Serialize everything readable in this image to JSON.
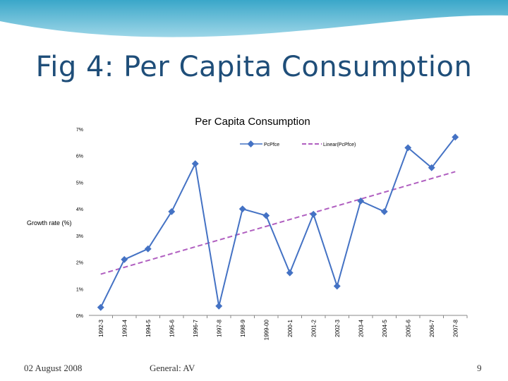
{
  "slide": {
    "title": "Fig 4: Per Capita Consumption",
    "footer_date": "02 August 2008",
    "footer_center": "General: AV",
    "page_number": "9"
  },
  "colors": {
    "series": "#4472c4",
    "trend": "#b05fc0",
    "title": "#1f4e79"
  },
  "chart_data": {
    "type": "line",
    "title": "Per Capita Consumption",
    "ylabel": "Growth rate (%)",
    "xlabel": "",
    "categories": [
      "1992-3",
      "1993-4",
      "1994-5",
      "1995-6",
      "1996-7",
      "1997-8",
      "1998-9",
      "1999-00",
      "2000-1",
      "2001-2",
      "2002-3",
      "2003-4",
      "2004-5",
      "2005-6",
      "2006-7",
      "2007-8"
    ],
    "series": [
      {
        "name": "PcPfce",
        "values": [
          0.3,
          2.1,
          2.5,
          3.9,
          5.7,
          0.35,
          4.0,
          3.75,
          1.6,
          3.8,
          1.1,
          4.3,
          3.9,
          6.3,
          5.55,
          6.7
        ]
      }
    ],
    "trendline": {
      "name": "Linear(PcPfce)",
      "start": 1.55,
      "end": 5.4
    },
    "ylim": [
      0,
      7
    ],
    "yticks": [
      "0%",
      "1%",
      "2%",
      "3%",
      "4%",
      "5%",
      "6%",
      "7%"
    ],
    "legend": "top-center",
    "grid": false
  }
}
